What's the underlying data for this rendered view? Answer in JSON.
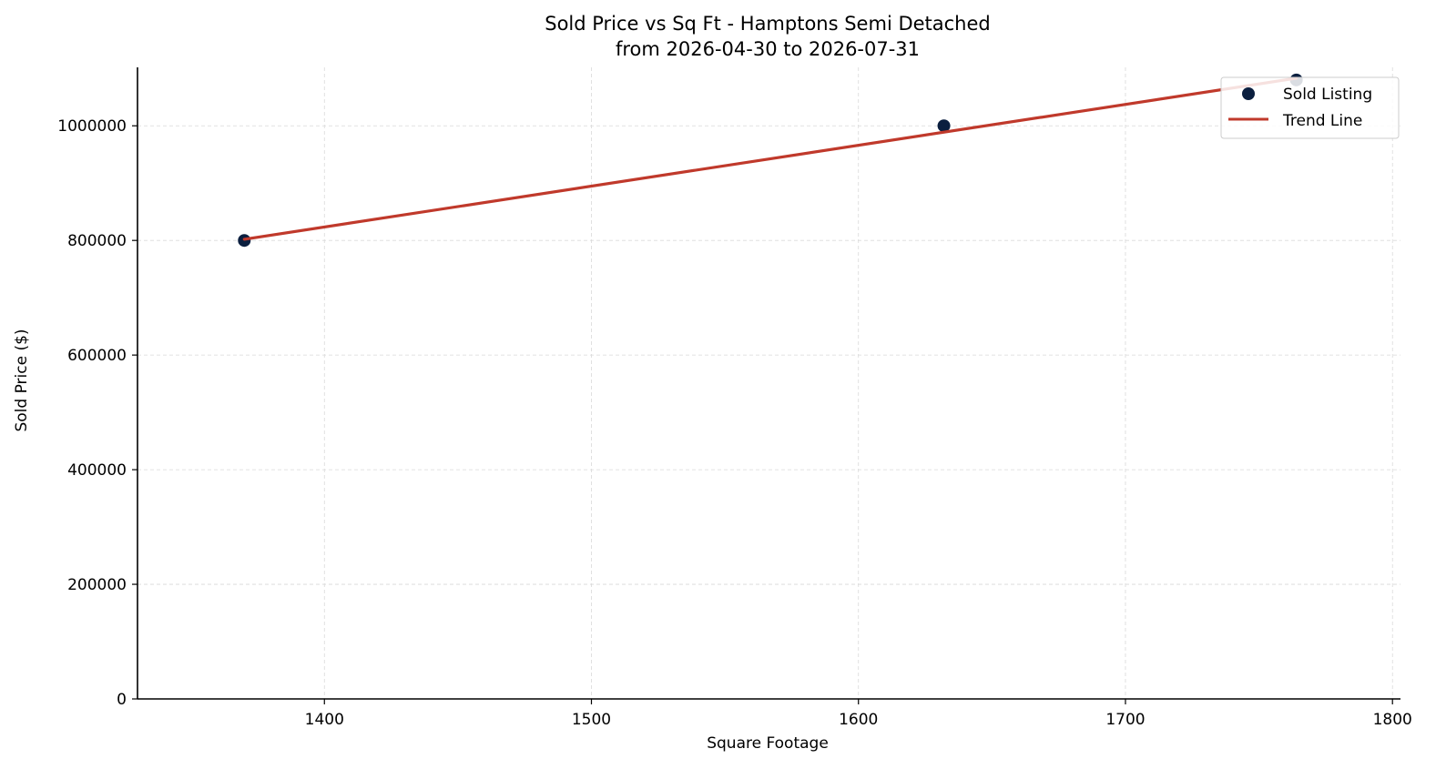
{
  "chart_data": {
    "type": "scatter",
    "title": "Sold Price vs Sq Ft - Hamptons Semi Detached",
    "subtitle": "from 2026-04-30 to 2026-07-31",
    "xlabel": "Square Footage",
    "ylabel": "Sold Price ($)",
    "xlim": [
      1330,
      1803
    ],
    "ylim": [
      0,
      1102000
    ],
    "x_ticks": [
      1400,
      1500,
      1600,
      1700,
      1800
    ],
    "y_ticks": [
      0,
      200000,
      400000,
      600000,
      800000,
      1000000
    ],
    "x_tick_labels": [
      "1400",
      "1500",
      "1600",
      "1700",
      "1800"
    ],
    "y_tick_labels": [
      "0",
      "200000",
      "400000",
      "600000",
      "800000",
      "1000000"
    ],
    "grid": true,
    "legend_position": "top-right",
    "series": [
      {
        "name": "Sold Listing",
        "kind": "scatter",
        "color": "#0b1f3f",
        "points": [
          {
            "x": 1370,
            "y": 800000
          },
          {
            "x": 1632,
            "y": 1000000
          },
          {
            "x": 1764,
            "y": 1080000
          }
        ]
      },
      {
        "name": "Trend Line",
        "kind": "line",
        "color": "#c0392b",
        "points": [
          {
            "x": 1370,
            "y": 802000
          },
          {
            "x": 1764,
            "y": 1083000
          }
        ]
      }
    ]
  }
}
